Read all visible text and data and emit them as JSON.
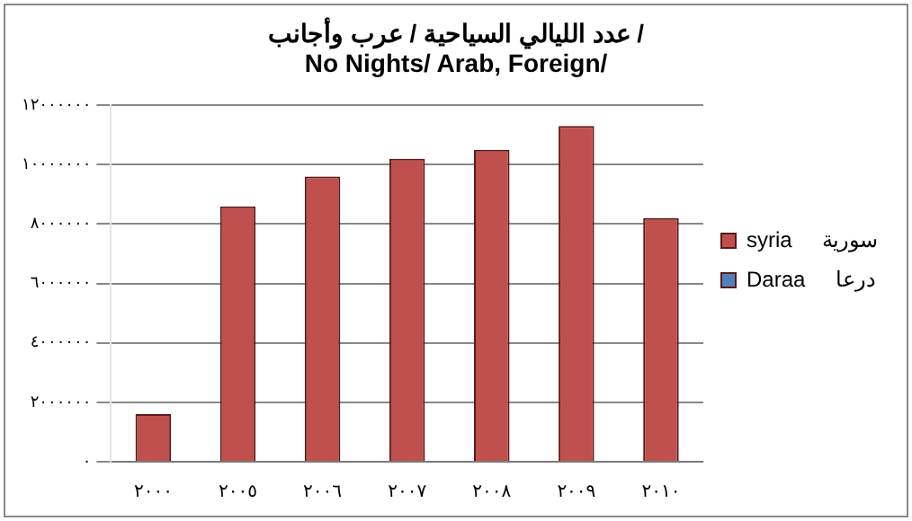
{
  "chart_data": {
    "type": "bar",
    "title": "عدد الليالي السياحية / عرب وأجانب /\nNo Nights/ Arab, Foreign/",
    "categories": [
      "٢٠٠٠",
      "٢٠٠٥",
      "٢٠٠٦",
      "٢٠٠٧",
      "٢٠٠٨",
      "٢٠٠٩",
      "٢٠١٠"
    ],
    "series": [
      {
        "name": "syria     سورية",
        "color": "#c0504d",
        "values": [
          1600000,
          8600000,
          9600000,
          10200000,
          10500000,
          11300000,
          8200000
        ]
      },
      {
        "name": "Daraa     درعا",
        "color": "#4f81bd",
        "values": [
          null,
          null,
          null,
          null,
          null,
          null,
          null
        ]
      }
    ],
    "ylim": [
      0,
      12000000
    ],
    "yticks": [
      {
        "value": 0,
        "label": "٠"
      },
      {
        "value": 2000000,
        "label": "٢٠٠٠٠٠٠"
      },
      {
        "value": 4000000,
        "label": "٤٠٠٠٠٠٠"
      },
      {
        "value": 6000000,
        "label": "٦٠٠٠٠٠٠"
      },
      {
        "value": 8000000,
        "label": "٨٠٠٠٠٠٠"
      },
      {
        "value": 10000000,
        "label": "١٠٠٠٠٠٠٠"
      },
      {
        "value": 12000000,
        "label": "١٢٠٠٠٠٠٠"
      }
    ],
    "grid": "y",
    "legend": "right"
  }
}
